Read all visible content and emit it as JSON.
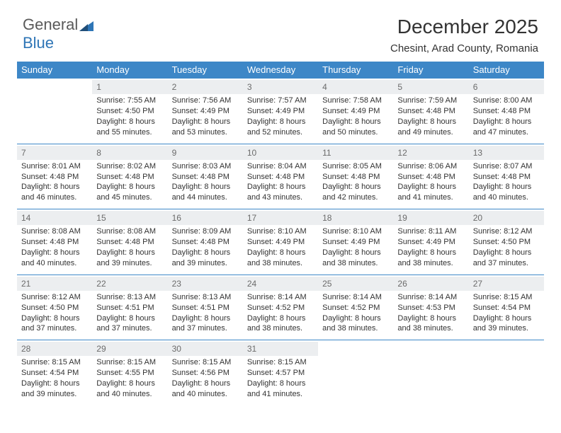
{
  "brand": {
    "part1": "General",
    "part2": "Blue",
    "part1_color": "#5a5a5a",
    "part2_color": "#2e75b6"
  },
  "title": "December 2025",
  "location": "Chesint, Arad County, Romania",
  "header_bg": "#3d87c7",
  "header_fg": "#ffffff",
  "dnum_bg": "#eceef0",
  "dnum_fg": "#6b6b6b",
  "cell_border": "#3d87c7",
  "body_text_color": "#333333",
  "font_size_title": 28,
  "font_size_subtitle": 15,
  "font_size_header": 13,
  "font_size_cell": 11,
  "weekdays": [
    "Sunday",
    "Monday",
    "Tuesday",
    "Wednesday",
    "Thursday",
    "Friday",
    "Saturday"
  ],
  "rows": [
    [
      null,
      {
        "d": "1",
        "sr": "Sunrise: 7:55 AM",
        "ss": "Sunset: 4:50 PM",
        "dl1": "Daylight: 8 hours",
        "dl2": "and 55 minutes."
      },
      {
        "d": "2",
        "sr": "Sunrise: 7:56 AM",
        "ss": "Sunset: 4:49 PM",
        "dl1": "Daylight: 8 hours",
        "dl2": "and 53 minutes."
      },
      {
        "d": "3",
        "sr": "Sunrise: 7:57 AM",
        "ss": "Sunset: 4:49 PM",
        "dl1": "Daylight: 8 hours",
        "dl2": "and 52 minutes."
      },
      {
        "d": "4",
        "sr": "Sunrise: 7:58 AM",
        "ss": "Sunset: 4:49 PM",
        "dl1": "Daylight: 8 hours",
        "dl2": "and 50 minutes."
      },
      {
        "d": "5",
        "sr": "Sunrise: 7:59 AM",
        "ss": "Sunset: 4:48 PM",
        "dl1": "Daylight: 8 hours",
        "dl2": "and 49 minutes."
      },
      {
        "d": "6",
        "sr": "Sunrise: 8:00 AM",
        "ss": "Sunset: 4:48 PM",
        "dl1": "Daylight: 8 hours",
        "dl2": "and 47 minutes."
      }
    ],
    [
      {
        "d": "7",
        "sr": "Sunrise: 8:01 AM",
        "ss": "Sunset: 4:48 PM",
        "dl1": "Daylight: 8 hours",
        "dl2": "and 46 minutes."
      },
      {
        "d": "8",
        "sr": "Sunrise: 8:02 AM",
        "ss": "Sunset: 4:48 PM",
        "dl1": "Daylight: 8 hours",
        "dl2": "and 45 minutes."
      },
      {
        "d": "9",
        "sr": "Sunrise: 8:03 AM",
        "ss": "Sunset: 4:48 PM",
        "dl1": "Daylight: 8 hours",
        "dl2": "and 44 minutes."
      },
      {
        "d": "10",
        "sr": "Sunrise: 8:04 AM",
        "ss": "Sunset: 4:48 PM",
        "dl1": "Daylight: 8 hours",
        "dl2": "and 43 minutes."
      },
      {
        "d": "11",
        "sr": "Sunrise: 8:05 AM",
        "ss": "Sunset: 4:48 PM",
        "dl1": "Daylight: 8 hours",
        "dl2": "and 42 minutes."
      },
      {
        "d": "12",
        "sr": "Sunrise: 8:06 AM",
        "ss": "Sunset: 4:48 PM",
        "dl1": "Daylight: 8 hours",
        "dl2": "and 41 minutes."
      },
      {
        "d": "13",
        "sr": "Sunrise: 8:07 AM",
        "ss": "Sunset: 4:48 PM",
        "dl1": "Daylight: 8 hours",
        "dl2": "and 40 minutes."
      }
    ],
    [
      {
        "d": "14",
        "sr": "Sunrise: 8:08 AM",
        "ss": "Sunset: 4:48 PM",
        "dl1": "Daylight: 8 hours",
        "dl2": "and 40 minutes."
      },
      {
        "d": "15",
        "sr": "Sunrise: 8:08 AM",
        "ss": "Sunset: 4:48 PM",
        "dl1": "Daylight: 8 hours",
        "dl2": "and 39 minutes."
      },
      {
        "d": "16",
        "sr": "Sunrise: 8:09 AM",
        "ss": "Sunset: 4:48 PM",
        "dl1": "Daylight: 8 hours",
        "dl2": "and 39 minutes."
      },
      {
        "d": "17",
        "sr": "Sunrise: 8:10 AM",
        "ss": "Sunset: 4:49 PM",
        "dl1": "Daylight: 8 hours",
        "dl2": "and 38 minutes."
      },
      {
        "d": "18",
        "sr": "Sunrise: 8:10 AM",
        "ss": "Sunset: 4:49 PM",
        "dl1": "Daylight: 8 hours",
        "dl2": "and 38 minutes."
      },
      {
        "d": "19",
        "sr": "Sunrise: 8:11 AM",
        "ss": "Sunset: 4:49 PM",
        "dl1": "Daylight: 8 hours",
        "dl2": "and 38 minutes."
      },
      {
        "d": "20",
        "sr": "Sunrise: 8:12 AM",
        "ss": "Sunset: 4:50 PM",
        "dl1": "Daylight: 8 hours",
        "dl2": "and 37 minutes."
      }
    ],
    [
      {
        "d": "21",
        "sr": "Sunrise: 8:12 AM",
        "ss": "Sunset: 4:50 PM",
        "dl1": "Daylight: 8 hours",
        "dl2": "and 37 minutes."
      },
      {
        "d": "22",
        "sr": "Sunrise: 8:13 AM",
        "ss": "Sunset: 4:51 PM",
        "dl1": "Daylight: 8 hours",
        "dl2": "and 37 minutes."
      },
      {
        "d": "23",
        "sr": "Sunrise: 8:13 AM",
        "ss": "Sunset: 4:51 PM",
        "dl1": "Daylight: 8 hours",
        "dl2": "and 37 minutes."
      },
      {
        "d": "24",
        "sr": "Sunrise: 8:14 AM",
        "ss": "Sunset: 4:52 PM",
        "dl1": "Daylight: 8 hours",
        "dl2": "and 38 minutes."
      },
      {
        "d": "25",
        "sr": "Sunrise: 8:14 AM",
        "ss": "Sunset: 4:52 PM",
        "dl1": "Daylight: 8 hours",
        "dl2": "and 38 minutes."
      },
      {
        "d": "26",
        "sr": "Sunrise: 8:14 AM",
        "ss": "Sunset: 4:53 PM",
        "dl1": "Daylight: 8 hours",
        "dl2": "and 38 minutes."
      },
      {
        "d": "27",
        "sr": "Sunrise: 8:15 AM",
        "ss": "Sunset: 4:54 PM",
        "dl1": "Daylight: 8 hours",
        "dl2": "and 39 minutes."
      }
    ],
    [
      {
        "d": "28",
        "sr": "Sunrise: 8:15 AM",
        "ss": "Sunset: 4:54 PM",
        "dl1": "Daylight: 8 hours",
        "dl2": "and 39 minutes."
      },
      {
        "d": "29",
        "sr": "Sunrise: 8:15 AM",
        "ss": "Sunset: 4:55 PM",
        "dl1": "Daylight: 8 hours",
        "dl2": "and 40 minutes."
      },
      {
        "d": "30",
        "sr": "Sunrise: 8:15 AM",
        "ss": "Sunset: 4:56 PM",
        "dl1": "Daylight: 8 hours",
        "dl2": "and 40 minutes."
      },
      {
        "d": "31",
        "sr": "Sunrise: 8:15 AM",
        "ss": "Sunset: 4:57 PM",
        "dl1": "Daylight: 8 hours",
        "dl2": "and 41 minutes."
      },
      null,
      null,
      null
    ]
  ]
}
